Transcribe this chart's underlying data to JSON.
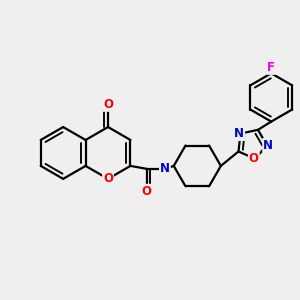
{
  "bg_color": "#efefef",
  "bond_color": "#000000",
  "bond_width": 1.6,
  "atom_colors": {
    "O": "#ff0000",
    "N": "#0000cc",
    "F": "#ee00ee",
    "C": "#000000"
  },
  "font_size_atom": 8.5
}
